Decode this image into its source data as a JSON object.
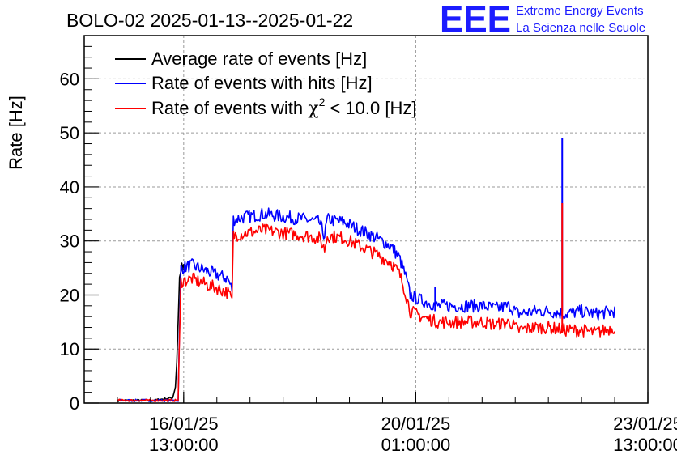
{
  "header": {
    "title": "BOLO-02 2025-01-13--2025-01-22",
    "logo": "EEE",
    "logo_line1": "Extreme Energy Events",
    "logo_line2": "La Scienza nelle Scuole"
  },
  "chart_data": {
    "type": "line",
    "ylabel": "Rate [Hz]",
    "xlabel": "",
    "ylim": [
      0,
      68
    ],
    "xlim": [
      "2025-01-15T01:00:00",
      "2025-01-23T13:00:00"
    ],
    "grid": true,
    "legend_position": "top-left",
    "y_ticks": [
      0,
      10,
      20,
      30,
      40,
      50,
      60
    ],
    "x_ticks": [
      {
        "at": "2025-01-16T13:00:00",
        "line1": "16/01/25",
        "line2": "13:00:00"
      },
      {
        "at": "2025-01-20T01:00:00",
        "line1": "20/01/25",
        "line2": "01:00:00"
      },
      {
        "at": "2025-01-23T13:00:00",
        "line1": "23/01/25",
        "line2": "13:00:00"
      }
    ],
    "legend": [
      {
        "label": "Average rate of events [Hz]",
        "color": "#000000",
        "type": "text"
      },
      {
        "label": "Rate of events with hits [Hz]",
        "color": "#0000ff",
        "type": "text"
      },
      {
        "label_pre": "Rate of events with ",
        "label_sym": "χ",
        "label_sup": "2",
        "label_post": " < 10.0 [Hz]",
        "color": "#ff0000",
        "type": "chi"
      }
    ],
    "series": [
      {
        "name": "Average rate of events [Hz]",
        "color": "#000000",
        "points": [
          [
            "2025-01-15T13:00:00",
            0.5
          ],
          [
            "2025-01-16T02:00:00",
            0.5
          ],
          [
            "2025-01-16T09:00:00",
            1.0
          ],
          [
            "2025-01-16T10:00:00",
            3
          ],
          [
            "2025-01-16T10:30:00",
            8
          ],
          [
            "2025-01-16T11:00:00",
            15
          ],
          [
            "2025-01-16T11:30:00",
            23
          ],
          [
            "2025-01-16T12:00:00",
            25
          ],
          [
            "2025-01-16T14:00:00",
            24.5
          ]
        ]
      },
      {
        "name": "Rate of events with hits [Hz]",
        "color": "#0000ff",
        "points": [
          [
            "2025-01-15T13:00:00",
            0.5
          ],
          [
            "2025-01-16T11:00:00",
            0.5
          ],
          [
            "2025-01-16T12:00:00",
            25
          ],
          [
            "2025-01-16T16:00:00",
            25.5
          ],
          [
            "2025-01-16T21:00:00",
            24.5
          ],
          [
            "2025-01-17T05:00:00",
            23
          ],
          [
            "2025-01-17T06:30:00",
            21
          ],
          [
            "2025-01-17T07:00:00",
            34
          ],
          [
            "2025-01-17T12:00:00",
            34.5
          ],
          [
            "2025-01-17T18:00:00",
            35
          ],
          [
            "2025-01-18T01:00:00",
            34.5
          ],
          [
            "2025-01-18T09:00:00",
            34
          ],
          [
            "2025-01-18T14:00:00",
            33.5
          ],
          [
            "2025-01-18T16:00:00",
            31
          ],
          [
            "2025-01-18T17:00:00",
            34
          ],
          [
            "2025-01-18T23:00:00",
            33.5
          ],
          [
            "2025-01-19T05:00:00",
            32
          ],
          [
            "2025-01-19T11:00:00",
            30.5
          ],
          [
            "2025-01-19T16:00:00",
            29
          ],
          [
            "2025-01-19T19:00:00",
            27
          ],
          [
            "2025-01-19T21:00:00",
            24
          ],
          [
            "2025-01-19T23:00:00",
            20
          ],
          [
            "2025-01-20T03:00:00",
            19
          ],
          [
            "2025-01-20T09:00:00",
            18
          ],
          [
            "2025-01-20T13:00:00",
            18
          ],
          [
            "2025-01-20T18:00:00",
            18
          ],
          [
            "2025-01-21T01:00:00",
            18
          ],
          [
            "2025-01-21T06:00:00",
            17.5
          ],
          [
            "2025-01-21T11:00:00",
            18
          ],
          [
            "2025-01-21T14:00:00",
            16.5
          ],
          [
            "2025-01-21T20:00:00",
            17
          ],
          [
            "2025-01-22T01:00:00",
            17
          ],
          [
            "2025-01-22T07:00:00",
            16.5
          ],
          [
            "2025-01-22T13:00:00",
            17
          ],
          [
            "2025-01-22T18:00:00",
            16.5
          ],
          [
            "2025-01-23T01:00:00",
            17
          ]
        ]
      },
      {
        "name": "Rate of events with χ2 < 10.0 [Hz]",
        "color": "#ff0000",
        "points": [
          [
            "2025-01-15T13:00:00",
            0.5
          ],
          [
            "2025-01-16T11:00:00",
            0.5
          ],
          [
            "2025-01-16T12:00:00",
            22.5
          ],
          [
            "2025-01-16T16:00:00",
            23
          ],
          [
            "2025-01-16T21:00:00",
            22
          ],
          [
            "2025-01-17T05:00:00",
            20.5
          ],
          [
            "2025-01-17T06:30:00",
            19
          ],
          [
            "2025-01-17T07:00:00",
            31
          ],
          [
            "2025-01-17T12:00:00",
            31.5
          ],
          [
            "2025-01-17T18:00:00",
            32
          ],
          [
            "2025-01-18T01:00:00",
            31.5
          ],
          [
            "2025-01-18T09:00:00",
            31
          ],
          [
            "2025-01-18T14:00:00",
            30.5
          ],
          [
            "2025-01-18T16:00:00",
            28.5
          ],
          [
            "2025-01-18T17:00:00",
            31
          ],
          [
            "2025-01-18T23:00:00",
            30.5
          ],
          [
            "2025-01-19T05:00:00",
            29
          ],
          [
            "2025-01-19T11:00:00",
            27.5
          ],
          [
            "2025-01-19T16:00:00",
            26
          ],
          [
            "2025-01-19T19:00:00",
            24
          ],
          [
            "2025-01-19T21:00:00",
            21
          ],
          [
            "2025-01-19T23:00:00",
            17
          ],
          [
            "2025-01-20T03:00:00",
            16
          ],
          [
            "2025-01-20T09:00:00",
            15
          ],
          [
            "2025-01-20T13:00:00",
            15
          ],
          [
            "2025-01-20T18:00:00",
            15
          ],
          [
            "2025-01-21T01:00:00",
            15
          ],
          [
            "2025-01-21T06:00:00",
            14.5
          ],
          [
            "2025-01-21T11:00:00",
            15
          ],
          [
            "2025-01-21T14:00:00",
            13.5
          ],
          [
            "2025-01-21T20:00:00",
            14
          ],
          [
            "2025-01-22T01:00:00",
            14
          ],
          [
            "2025-01-22T07:00:00",
            13.5
          ],
          [
            "2025-01-22T13:00:00",
            13.5
          ],
          [
            "2025-01-22T18:00:00",
            13
          ],
          [
            "2025-01-23T01:00:00",
            14
          ]
        ]
      }
    ],
    "spikes": [
      {
        "at": "2025-01-20T08:00:00",
        "series": "Rate of events with hits [Hz]",
        "color": "#0000ff",
        "from": 17,
        "to": 21.5
      },
      {
        "at": "2025-01-22T06:00:00",
        "series": "Rate of events with hits [Hz]",
        "color": "#0000ff",
        "from": 17,
        "to": 49
      },
      {
        "at": "2025-01-22T06:00:00",
        "series": "Rate of events with χ2 < 10.0 [Hz]",
        "color": "#ff0000",
        "from": 13,
        "to": 37
      }
    ]
  }
}
